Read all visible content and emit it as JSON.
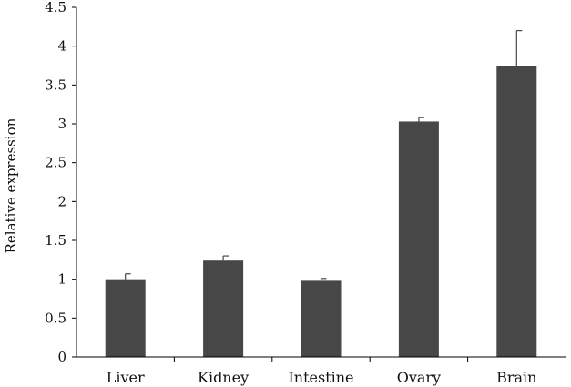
{
  "chart_data": {
    "type": "bar",
    "title": "",
    "xlabel": "",
    "ylabel": "Relative expression",
    "ylim": [
      0,
      4.5
    ],
    "yticks": [
      "0",
      "0.5",
      "1",
      "1.5",
      "2",
      "2.5",
      "3",
      "3.5",
      "4",
      "4.5"
    ],
    "categories": [
      "Liver",
      "Kidney",
      "Intestine",
      "Ovary",
      "Brain"
    ],
    "values": [
      1.0,
      1.24,
      0.98,
      3.03,
      3.75
    ],
    "error_plus": [
      0.07,
      0.06,
      0.03,
      0.05,
      0.45
    ],
    "grid": false,
    "legend": "none",
    "bar_color": "#474747",
    "axis_color": "#000000"
  }
}
